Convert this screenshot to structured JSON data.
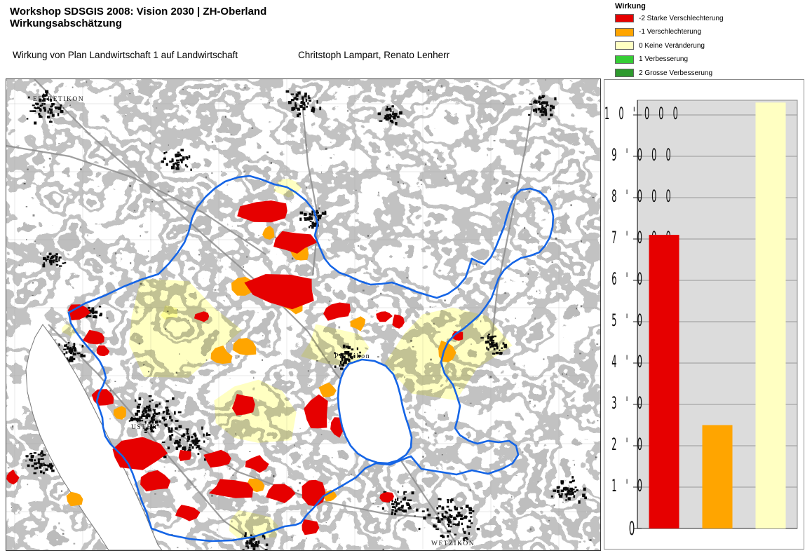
{
  "header": {
    "title_line1": "Workshop SDSGIS 2008: Vision 2030 | ZH-Oberland",
    "title_line2": "Wirkungsabschätzung",
    "subtitle": "Wirkung von Plan Landwirtschaft 1 auf Landwirtschaft",
    "authors": "Chritstoph Lampart, Renato Lenherr"
  },
  "legend": {
    "title": "Wirkung",
    "items": [
      {
        "label": "-2 Starke Verschlechterung",
        "color": "#e60000"
      },
      {
        "label": "-1 Verschlechterung",
        "color": "#ffa500"
      },
      {
        "label": "0 Keine Veränderung",
        "color": "#ffffc2"
      },
      {
        "label": "1 Verbesserung",
        "color": "#35cd35"
      },
      {
        "label": "2 Grosse Verbesserung",
        "color": "#2e9a2e"
      }
    ]
  },
  "map": {
    "boundary_color": "#1565e6",
    "labels": [
      {
        "text": "EFFRETIKON"
      },
      {
        "text": "USTER"
      },
      {
        "text": "Pfäffikon"
      },
      {
        "text": "WETZIKON"
      }
    ]
  },
  "chart_data": {
    "type": "bar",
    "title": "",
    "categories": [
      "-2 Starke Verschlechterung",
      "-1 Verschlechterung",
      "0 Keine Veränderung"
    ],
    "values": [
      7100,
      2500,
      10300
    ],
    "colors": [
      "#e60000",
      "#ffa500",
      "#ffffc2"
    ],
    "xlabel": "",
    "ylabel": "",
    "ylim": [
      0,
      10300
    ],
    "ytick_step": 1000,
    "ytick_labels": [
      "0",
      "1'000",
      "2'000",
      "3'000",
      "4'000",
      "5'000",
      "6'000",
      "7'000",
      "8'000",
      "9'000",
      "10'000"
    ],
    "gridlines": true,
    "plot_bg": "#dcdcdc",
    "gridline_color": "#999999",
    "legend_position": "none"
  }
}
